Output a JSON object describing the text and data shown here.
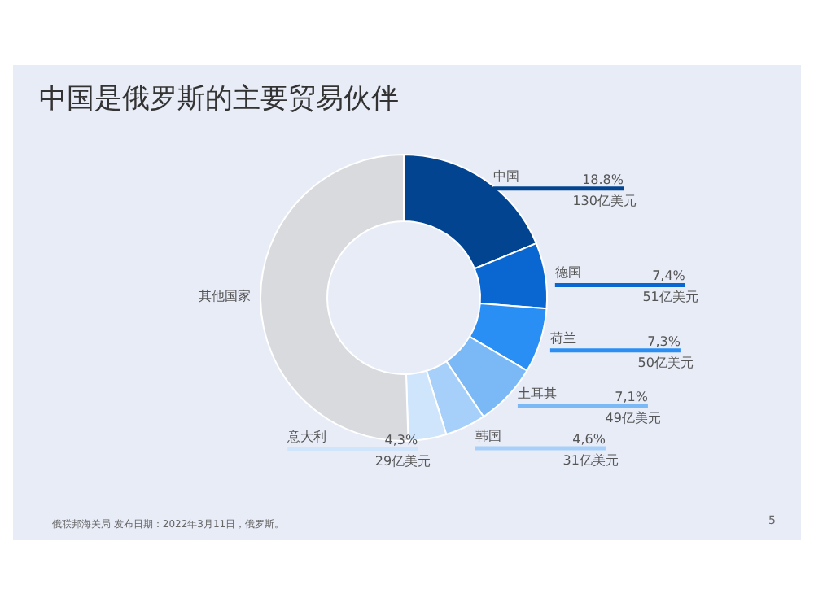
{
  "chart_data": {
    "type": "donut",
    "title": "中国是俄罗斯的主要贸易伙伴",
    "categories": [
      "中国",
      "德国",
      "荷兰",
      "土耳其",
      "韩国",
      "意大利",
      "其他国家"
    ],
    "values": [
      18.8,
      7.4,
      7.3,
      7.1,
      4.6,
      4.3,
      50.5
    ],
    "colors": [
      "#034491",
      "#0a66d0",
      "#2a8ff5",
      "#7ab9f5",
      "#a6d0fa",
      "#cfe5fb",
      "#d8dade"
    ],
    "value_labels": [
      "18.8%\n130亿美元",
      "7,4%\n51亿美元",
      "7,3%\n50亿美元",
      "7,1%\n49亿美元",
      "4,6%\n31亿美元",
      "4,3%\n29亿美元",
      null
    ],
    "annotations": [
      "俄联邦海关局 发布日期：2022年3月11日，俄罗斯。",
      "5"
    ]
  }
}
